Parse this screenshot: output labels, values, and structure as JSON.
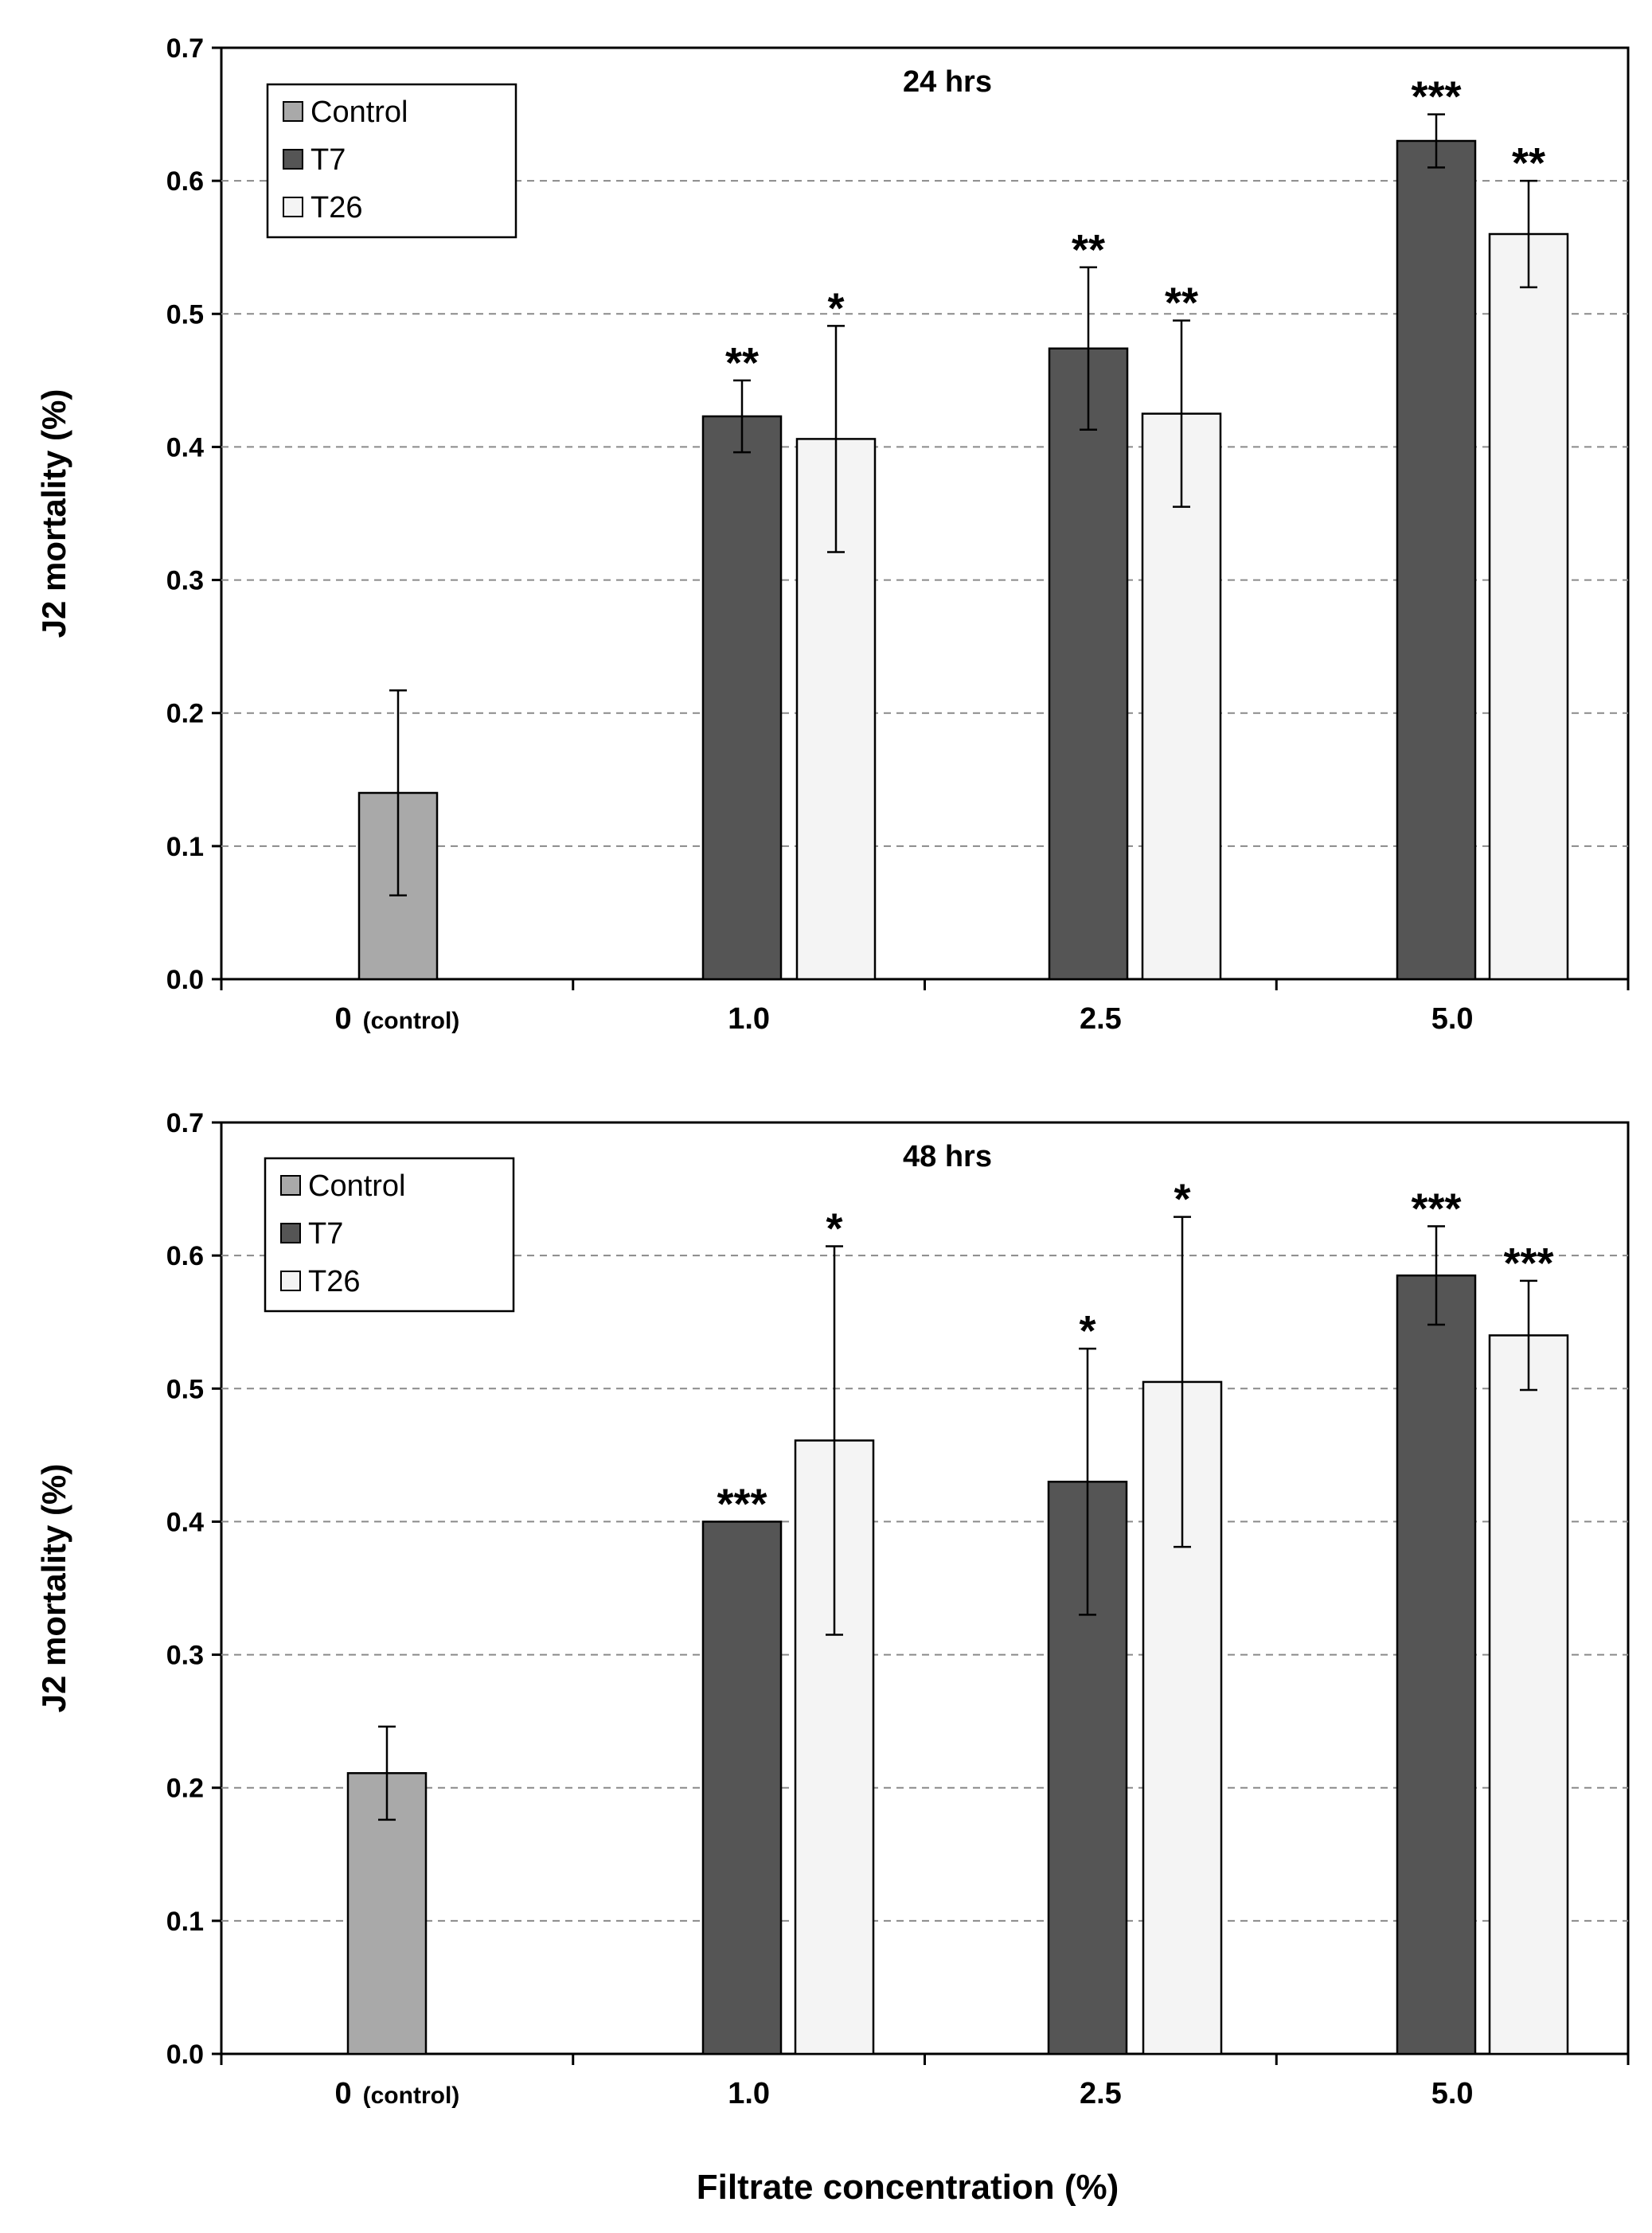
{
  "chart_data": [
    {
      "type": "bar",
      "title": "24 hrs",
      "ylabel": "J2 mortality (%)",
      "xlabel": "",
      "ylim": [
        0,
        0.7
      ],
      "yticks": [
        "0.0",
        "0.1",
        "0.2",
        "0.3",
        "0.4",
        "0.5",
        "0.6",
        "0.7"
      ],
      "grid": true,
      "legend_position": "top-left",
      "categories": [
        {
          "label": "0",
          "sublabel": "(control)"
        },
        {
          "label": "1.0",
          "sublabel": ""
        },
        {
          "label": "2.5",
          "sublabel": ""
        },
        {
          "label": "5.0",
          "sublabel": ""
        }
      ],
      "series": [
        {
          "name": "Control",
          "color": "#a9a9a9",
          "values": [
            0.14,
            null,
            null,
            null
          ],
          "errors": [
            0.077,
            null,
            null,
            null
          ],
          "significance": [
            "",
            "",
            "",
            ""
          ]
        },
        {
          "name": "T7",
          "color": "#555555",
          "values": [
            null,
            0.423,
            0.474,
            0.63
          ],
          "errors": [
            null,
            0.027,
            0.061,
            0.02
          ],
          "significance": [
            "",
            "**",
            "**",
            "***"
          ]
        },
        {
          "name": "T26",
          "color": "#f4f4f4",
          "values": [
            null,
            0.406,
            0.425,
            0.56
          ],
          "errors": [
            null,
            0.085,
            0.07,
            0.04
          ],
          "significance": [
            "",
            "*",
            "**",
            "**"
          ]
        }
      ]
    },
    {
      "type": "bar",
      "title": "48 hrs",
      "ylabel": "J2 mortality (%)",
      "xlabel": "Filtrate concentration (%)",
      "ylim": [
        0,
        0.7
      ],
      "yticks": [
        "0.0",
        "0.1",
        "0.2",
        "0.3",
        "0.4",
        "0.5",
        "0.6",
        "0.7"
      ],
      "grid": true,
      "legend_position": "top-left",
      "categories": [
        {
          "label": "0",
          "sublabel": "(control)"
        },
        {
          "label": "1.0",
          "sublabel": ""
        },
        {
          "label": "2.5",
          "sublabel": ""
        },
        {
          "label": "5.0",
          "sublabel": ""
        }
      ],
      "series": [
        {
          "name": "Control",
          "color": "#a9a9a9",
          "values": [
            0.211,
            null,
            null,
            null
          ],
          "errors": [
            0.035,
            null,
            null,
            null
          ],
          "significance": [
            "",
            "",
            "",
            ""
          ]
        },
        {
          "name": "T7",
          "color": "#555555",
          "values": [
            null,
            0.4,
            0.43,
            0.585
          ],
          "errors": [
            null,
            0,
            0.1,
            0.037
          ],
          "significance": [
            "",
            "***",
            "*",
            "***"
          ]
        },
        {
          "name": "T26",
          "color": "#f4f4f4",
          "values": [
            null,
            0.461,
            0.505,
            0.54
          ],
          "errors": [
            null,
            0.146,
            0.124,
            0.041
          ],
          "significance": [
            "",
            "*",
            "*",
            "***"
          ]
        }
      ]
    }
  ]
}
